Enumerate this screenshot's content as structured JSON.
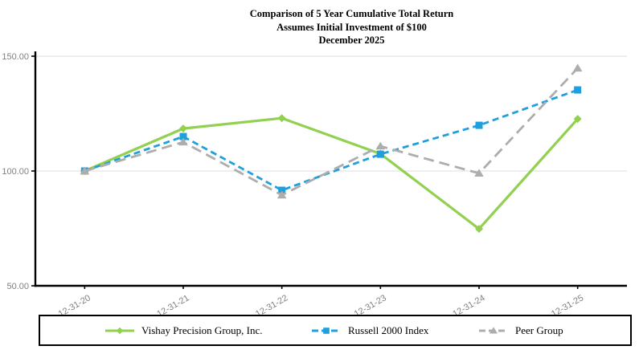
{
  "chart_data": {
    "type": "line",
    "title": "Comparison of 5 Year Cumulative Total Return",
    "subtitle": "Assumes Initial Investment of $100",
    "date_line": "December 2025",
    "xlabel": "",
    "ylabel": "",
    "categories": [
      "12-31-20",
      "12-31-21",
      "12-31-22",
      "12-31-23",
      "12-31-24",
      "12-31-25"
    ],
    "series": [
      {
        "name": "Vishay Precision Group, Inc.",
        "values": [
          100.0,
          118.5,
          123.0,
          107.5,
          74.8,
          122.7
        ],
        "color": "#92D050",
        "line_style": "solid",
        "marker": "diamond"
      },
      {
        "name": "Russell 2000 Index",
        "values": [
          100.0,
          115.0,
          91.6,
          107.3,
          119.9,
          135.3
        ],
        "color": "#1FA0DC",
        "line_style": "dashed",
        "marker": "square"
      },
      {
        "name": "Peer Group",
        "values": [
          100.0,
          112.6,
          89.5,
          110.8,
          99.0,
          144.8
        ],
        "color": "#ADADAD",
        "line_style": "long-dash",
        "marker": "triangle"
      }
    ],
    "ylim": [
      50,
      150
    ],
    "yticks": [
      50,
      100,
      150
    ],
    "ytick_labels": [
      "50.00",
      "100.00",
      "150.00"
    ],
    "grid": "horizontal",
    "gridline_color": "#DCDCDC",
    "axis_color": "#000000",
    "tick_label_color": "#808080",
    "legend_position": "bottom"
  }
}
